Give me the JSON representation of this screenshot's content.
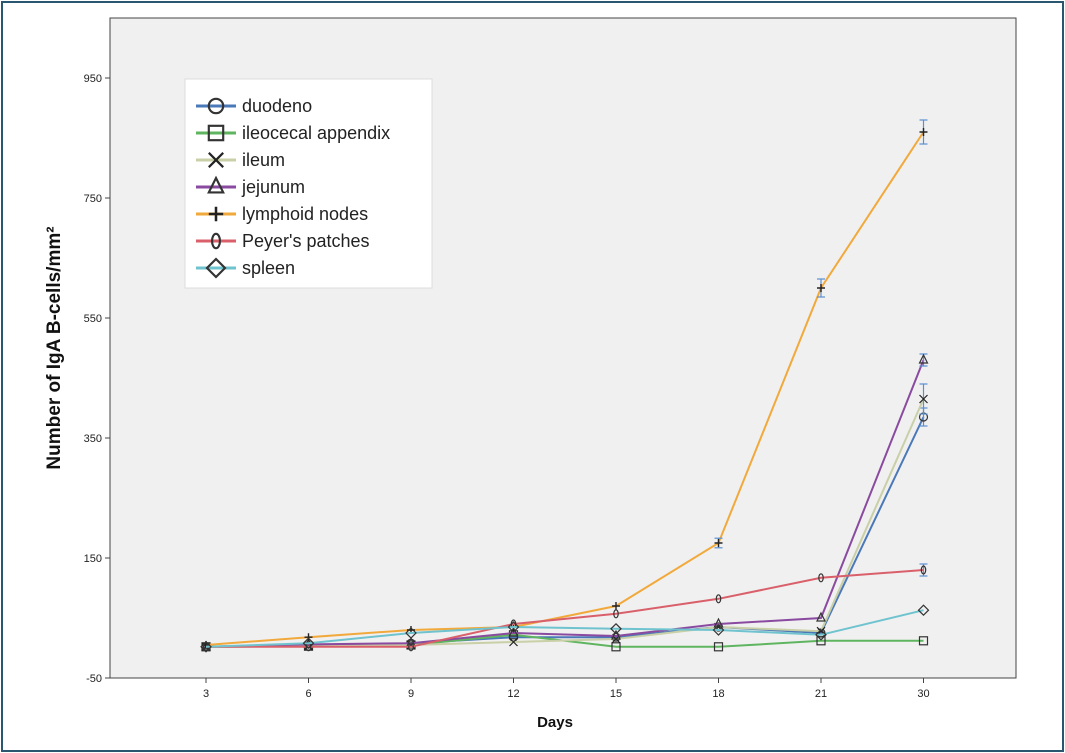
{
  "chart_data": {
    "type": "line",
    "title": "",
    "xlabel": "Days",
    "ylabel": "Number of IgA B-cells/mm²",
    "categories": [
      "3",
      "6",
      "9",
      "12",
      "15",
      "18",
      "21",
      "30"
    ],
    "yticks": [
      -50,
      150,
      350,
      550,
      750,
      950
    ],
    "ylim": [
      -50,
      1050
    ],
    "grid": false,
    "legend_position": "top-left",
    "series": [
      {
        "name": "duodeno",
        "marker": "circle",
        "color": "#4a78b8",
        "values": [
          2,
          3,
          8,
          18,
          18,
          35,
          25,
          385
        ],
        "err": [
          0,
          0,
          0,
          0,
          0,
          0,
          0,
          15
        ]
      },
      {
        "name": "ileocecal appendix",
        "marker": "square",
        "color": "#5fb55f",
        "values": [
          2,
          3,
          5,
          22,
          2,
          2,
          12,
          12
        ],
        "err": [
          0,
          0,
          0,
          0,
          0,
          0,
          0,
          0
        ]
      },
      {
        "name": "ileum",
        "marker": "x",
        "color": "#c9cfa6",
        "values": [
          2,
          3,
          5,
          10,
          15,
          35,
          28,
          415
        ],
        "err": [
          0,
          0,
          0,
          0,
          0,
          0,
          0,
          25
        ]
      },
      {
        "name": "jejunum",
        "marker": "triangle",
        "color": "#8a4aa0",
        "values": [
          2,
          6,
          8,
          25,
          20,
          40,
          50,
          480
        ],
        "err": [
          0,
          0,
          0,
          0,
          0,
          0,
          0,
          10
        ]
      },
      {
        "name": "lymphoid nodes",
        "marker": "plus",
        "color": "#f2a93b",
        "values": [
          5,
          18,
          30,
          35,
          70,
          175,
          600,
          860
        ],
        "err": [
          0,
          0,
          0,
          0,
          0,
          8,
          15,
          20
        ]
      },
      {
        "name": "Peyer's patches",
        "marker": "ellipse",
        "color": "#d9606a",
        "values": [
          2,
          2,
          2,
          40,
          57,
          82,
          117,
          130
        ],
        "err": [
          0,
          0,
          0,
          0,
          0,
          0,
          0,
          10
        ]
      },
      {
        "name": "spleen",
        "marker": "diamond",
        "color": "#6fc3cf",
        "values": [
          2,
          8,
          25,
          35,
          32,
          30,
          22,
          63
        ],
        "err": [
          0,
          0,
          0,
          0,
          0,
          0,
          0,
          0
        ]
      }
    ]
  }
}
